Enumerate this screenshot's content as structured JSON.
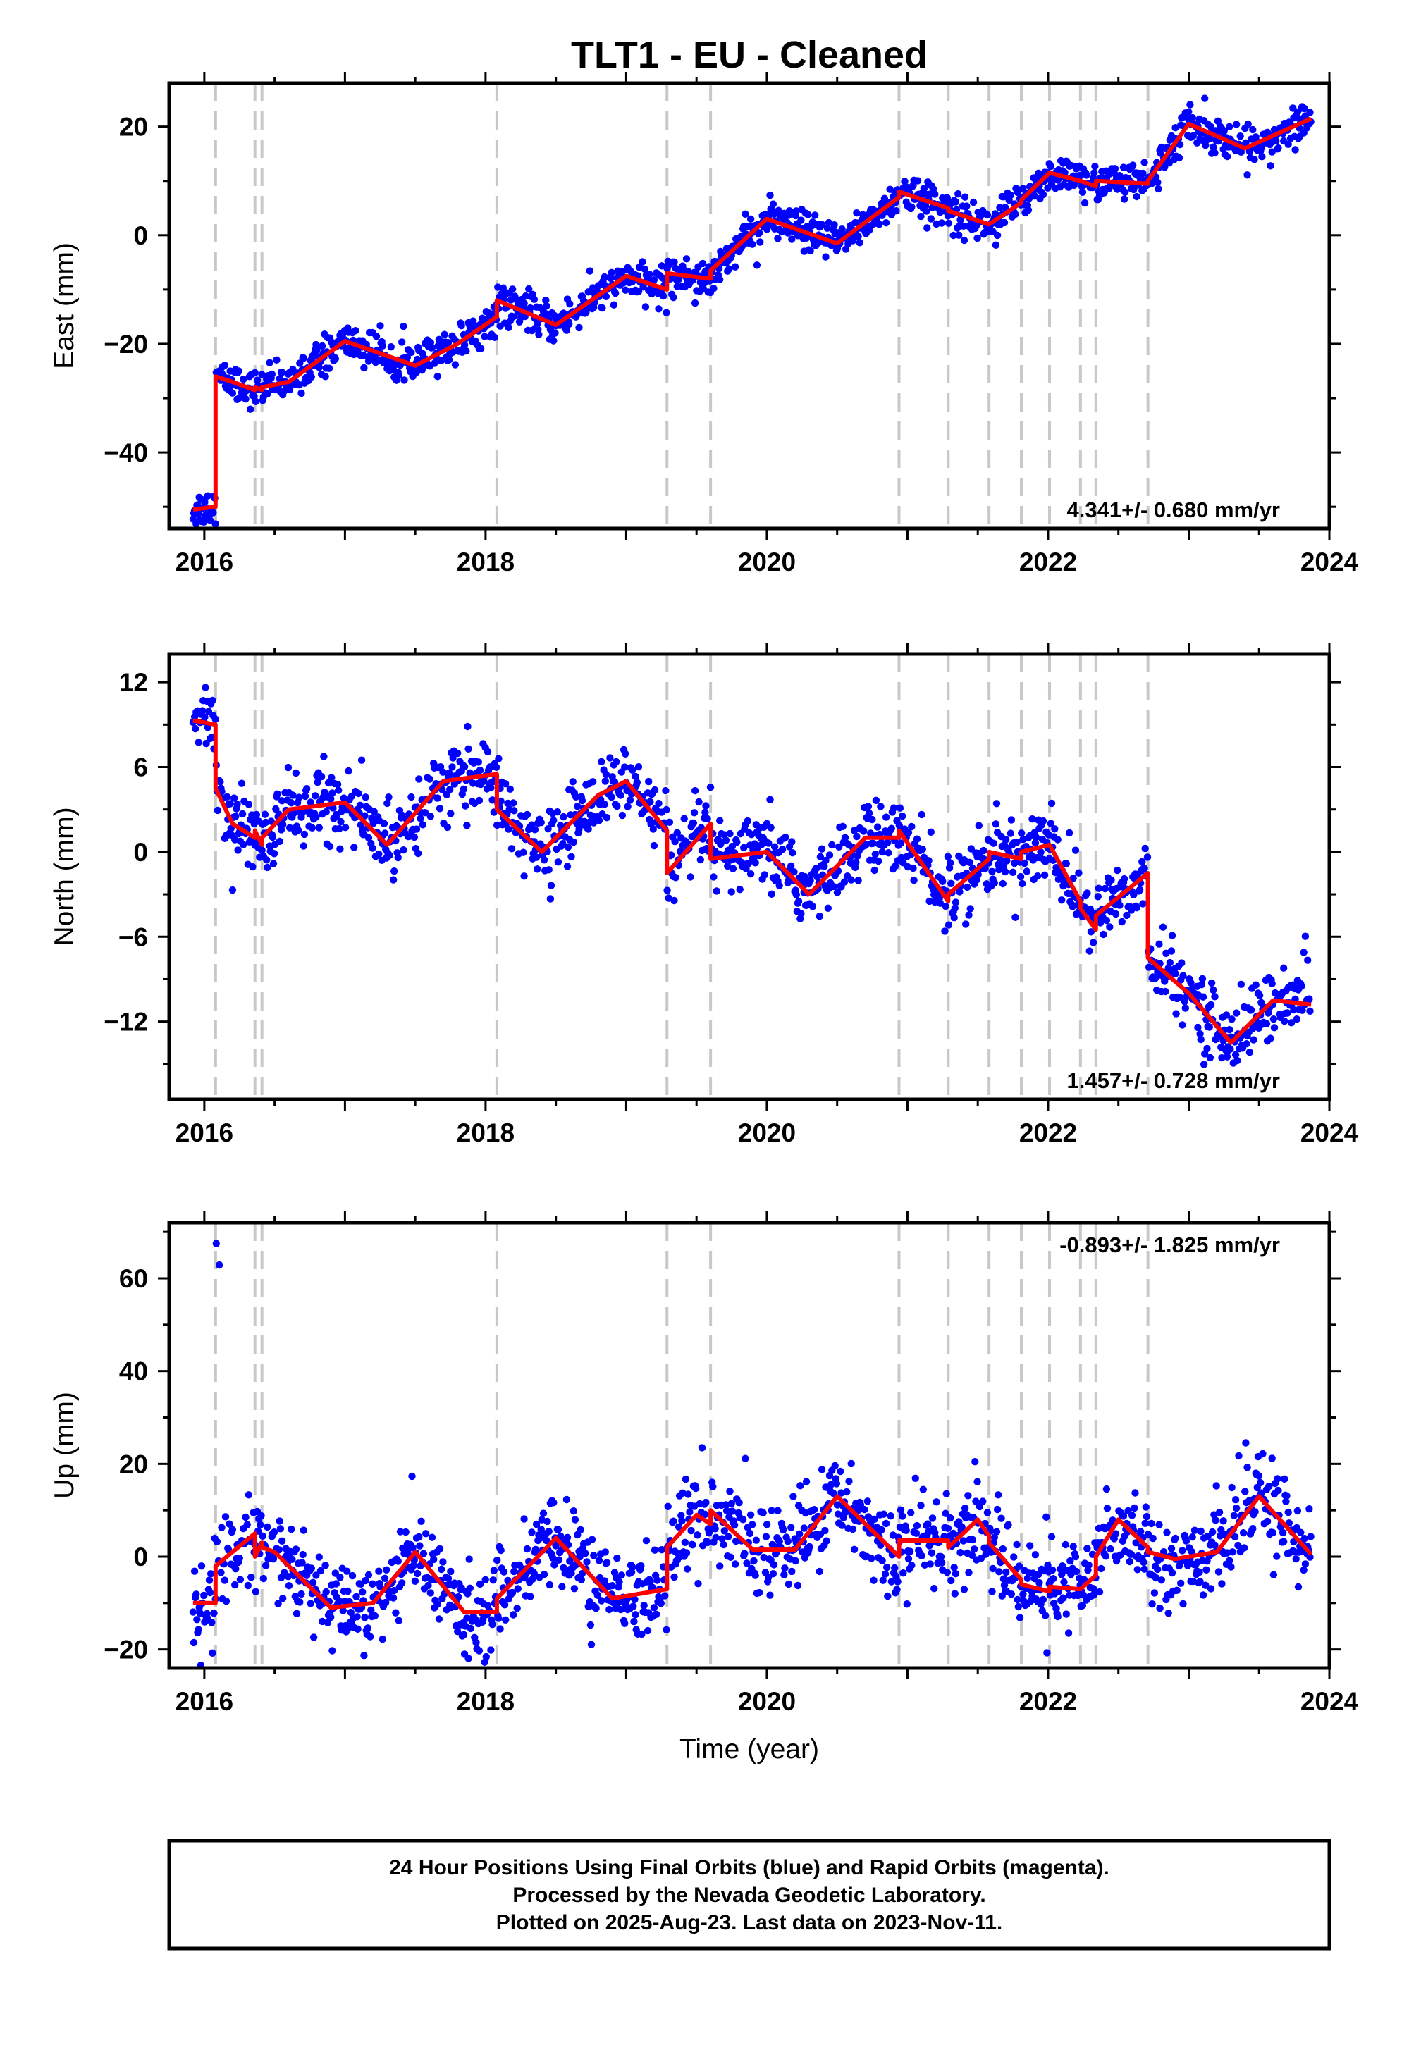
{
  "figure": {
    "title": "TLT1  - EU - Cleaned",
    "xlabel": "Time (year)",
    "footer_lines": [
      "24 Hour Positions Using Final Orbits (blue) and Rapid Orbits (magenta).",
      "Processed by the Nevada Geodetic Laboratory.",
      "Plotted on 2025-Aug-23. Last data on 2023-Nov-11."
    ]
  },
  "colors": {
    "points": "#0000ff",
    "model": "#ff0000",
    "steps": "#c8c8c8",
    "axes": "#000000"
  },
  "chart_data": [
    {
      "type": "scatter",
      "component": "East",
      "ylabel": "East (mm)",
      "xlim": [
        2015.75,
        2024.0
      ],
      "ylim": [
        -54,
        28
      ],
      "xticks": [
        2016,
        2018,
        2020,
        2022,
        2024
      ],
      "yticks": [
        -40,
        -20,
        0,
        20
      ],
      "rate_text": "4.341+/- 0.680 mm/yr",
      "rate_position": "bottom-right",
      "grid": false,
      "step_epochs": [
        2016.08,
        2016.36,
        2016.41,
        2018.08,
        2019.29,
        2019.6,
        2020.94,
        2021.29,
        2021.58,
        2021.81,
        2022.01,
        2022.23,
        2022.34,
        2022.71
      ],
      "series": [
        {
          "style": "model-line",
          "x": [
            2015.92,
            2016.08,
            2016.08,
            2016.2,
            2016.36,
            2016.36,
            2016.41,
            2016.41,
            2016.6,
            2017.0,
            2017.5,
            2017.8,
            2018.08,
            2018.08,
            2018.5,
            2019.0,
            2019.29,
            2019.29,
            2019.6,
            2019.6,
            2020.0,
            2020.5,
            2020.94,
            2020.94,
            2021.29,
            2021.29,
            2021.58,
            2021.58,
            2021.81,
            2021.81,
            2022.01,
            2022.01,
            2022.23,
            2022.23,
            2022.34,
            2022.34,
            2022.71,
            2022.71,
            2023.0,
            2023.4,
            2023.87
          ],
          "y": [
            -50.5,
            -50,
            -26,
            -27,
            -28.5,
            -28,
            -28.5,
            -28,
            -27,
            -19.5,
            -24,
            -20,
            -15,
            -12,
            -16.5,
            -7.5,
            -10,
            -7,
            -8,
            -6.5,
            3,
            -1.5,
            7,
            8,
            5,
            4.5,
            2,
            2,
            6,
            6.5,
            11.5,
            11.5,
            10,
            10,
            9,
            10,
            9.5,
            10,
            20.5,
            16,
            21.5
          ]
        }
      ]
    },
    {
      "type": "scatter",
      "component": "North",
      "ylabel": "North (mm)",
      "xlim": [
        2015.75,
        2024.0
      ],
      "ylim": [
        -17.5,
        14
      ],
      "xticks": [
        2016,
        2018,
        2020,
        2022,
        2024
      ],
      "yticks": [
        -12,
        -6,
        0,
        6,
        12
      ],
      "rate_text": "1.457+/- 0.728 mm/yr",
      "rate_position": "bottom-right",
      "grid": false,
      "step_epochs": [
        2016.08,
        2016.36,
        2016.41,
        2018.08,
        2019.29,
        2019.6,
        2020.94,
        2021.29,
        2021.58,
        2021.81,
        2022.01,
        2022.23,
        2022.34,
        2022.71
      ],
      "series": [
        {
          "style": "model-line",
          "x": [
            2015.92,
            2016.08,
            2016.08,
            2016.2,
            2016.36,
            2016.36,
            2016.41,
            2016.41,
            2016.6,
            2017.0,
            2017.3,
            2017.7,
            2018.08,
            2018.08,
            2018.4,
            2018.8,
            2019.0,
            2019.29,
            2019.29,
            2019.6,
            2019.6,
            2020.0,
            2020.3,
            2020.7,
            2020.94,
            2020.94,
            2021.29,
            2021.29,
            2021.58,
            2021.58,
            2021.81,
            2021.81,
            2022.01,
            2022.01,
            2022.23,
            2022.23,
            2022.34,
            2022.34,
            2022.71,
            2022.71,
            2023.0,
            2023.3,
            2023.6,
            2023.87
          ],
          "y": [
            9.3,
            9.0,
            4.5,
            2.0,
            1.0,
            1.5,
            0.5,
            1.0,
            3.0,
            3.5,
            0.5,
            5.0,
            5.5,
            3.0,
            0.0,
            4.0,
            5.0,
            1.5,
            -1.5,
            2.0,
            -0.5,
            0.0,
            -3.0,
            1.0,
            1.0,
            1.5,
            -3.5,
            -3.0,
            -0.5,
            0.0,
            -0.5,
            0.0,
            0.5,
            0.5,
            -3.5,
            -4.0,
            -5.5,
            -4.5,
            -1.5,
            -7.5,
            -10.0,
            -13.5,
            -10.5,
            -10.8
          ]
        }
      ]
    },
    {
      "type": "scatter",
      "component": "Up",
      "ylabel": "Up (mm)",
      "xlim": [
        2015.75,
        2024.0
      ],
      "ylim": [
        -24,
        72
      ],
      "xticks": [
        2016,
        2018,
        2020,
        2022,
        2024
      ],
      "yticks": [
        -20,
        0,
        20,
        40,
        60
      ],
      "rate_text": "-0.893+/- 1.825 mm/yr",
      "rate_position": "top-right",
      "grid": false,
      "step_epochs": [
        2016.08,
        2016.36,
        2016.41,
        2018.08,
        2019.29,
        2019.6,
        2020.94,
        2021.29,
        2021.58,
        2021.81,
        2022.01,
        2022.23,
        2022.34,
        2022.71
      ],
      "series": [
        {
          "style": "model-line",
          "x": [
            2015.92,
            2016.08,
            2016.08,
            2016.36,
            2016.36,
            2016.41,
            2016.41,
            2016.5,
            2016.9,
            2017.2,
            2017.5,
            2017.85,
            2018.08,
            2018.08,
            2018.5,
            2018.9,
            2019.29,
            2019.29,
            2019.5,
            2019.6,
            2019.6,
            2019.9,
            2020.2,
            2020.5,
            2020.94,
            2020.94,
            2021.29,
            2021.29,
            2021.5,
            2021.58,
            2021.58,
            2021.81,
            2021.81,
            2022.01,
            2022.01,
            2022.23,
            2022.23,
            2022.34,
            2022.34,
            2022.5,
            2022.71,
            2022.71,
            2022.9,
            2023.2,
            2023.5,
            2023.87
          ],
          "y": [
            -10,
            -10,
            -2,
            5,
            0,
            3,
            2,
            1,
            -11,
            -10,
            1,
            -12,
            -12,
            -9,
            4,
            -9,
            -7,
            2,
            9,
            7,
            10,
            1.5,
            1.5,
            13,
            0,
            3.5,
            3.5,
            2,
            8,
            4.5,
            3,
            -5,
            -6,
            -7.5,
            -6.5,
            -7,
            -7,
            -4,
            0,
            8,
            2,
            1,
            -0.5,
            1,
            13,
            0.5
          ]
        }
      ]
    }
  ]
}
